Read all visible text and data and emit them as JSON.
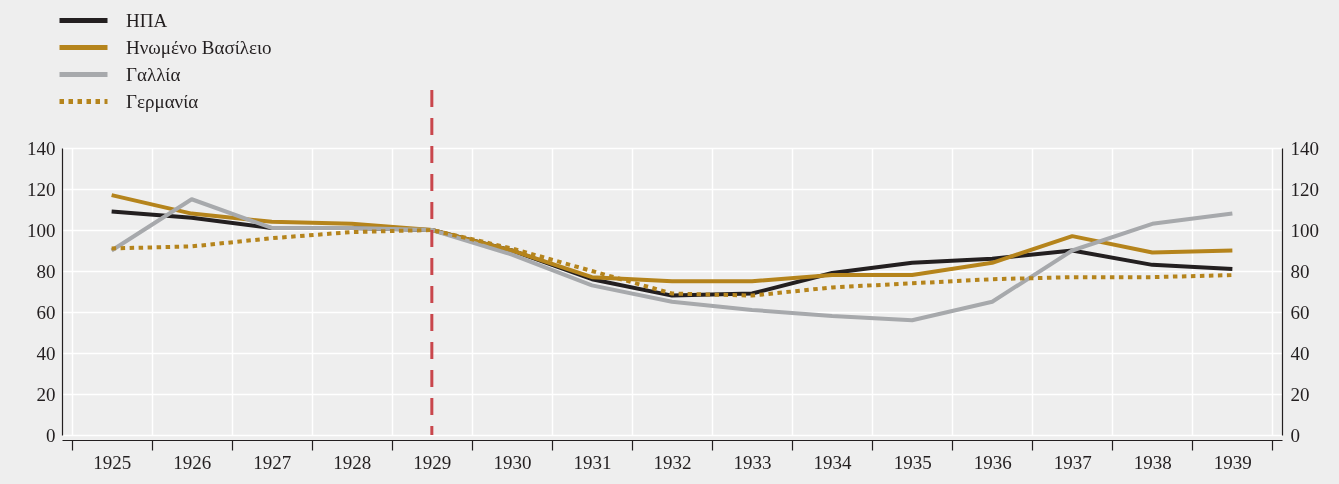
{
  "chart_data": {
    "type": "line",
    "categories": [
      "1925",
      "1926",
      "1927",
      "1928",
      "1929",
      "1930",
      "1931",
      "1932",
      "1933",
      "1934",
      "1935",
      "1936",
      "1937",
      "1938",
      "1939"
    ],
    "series": [
      {
        "name": "ΗΠΑ",
        "color": "#231f20",
        "values": [
          109,
          106,
          101,
          101,
          100,
          90,
          76,
          68,
          69,
          79,
          84,
          86,
          90,
          83,
          81
        ]
      },
      {
        "name": "Ηνωμένο Βασίλειο",
        "color": "#b5841c",
        "values": [
          117,
          108,
          104,
          103,
          100,
          90,
          77,
          75,
          75,
          78,
          78,
          84,
          97,
          89,
          90
        ]
      },
      {
        "name": "Γαλλία",
        "color": "#a7a9ac",
        "values": [
          90,
          115,
          101,
          101,
          100,
          88,
          73,
          65,
          61,
          58,
          56,
          65,
          90,
          103,
          108
        ]
      },
      {
        "name": "Γερμανία",
        "color": "#b5841c",
        "line_style": "dotted",
        "values": [
          91,
          92,
          96,
          99,
          100,
          91,
          80,
          69,
          68,
          72,
          74,
          76,
          77,
          77,
          78
        ]
      }
    ],
    "line_style": "solid",
    "ylim": [
      0,
      140
    ],
    "yticks": [
      0,
      20,
      40,
      60,
      80,
      100,
      120,
      140
    ],
    "y2lim": [
      0,
      140
    ],
    "y2ticks": [
      0,
      20,
      40,
      60,
      80,
      100,
      120,
      140
    ],
    "grid": true,
    "legend": "top left",
    "ref_lines": [
      {
        "axis": "x",
        "value": "1929",
        "color": "#c9464c",
        "line_style": "dashed"
      }
    ]
  }
}
